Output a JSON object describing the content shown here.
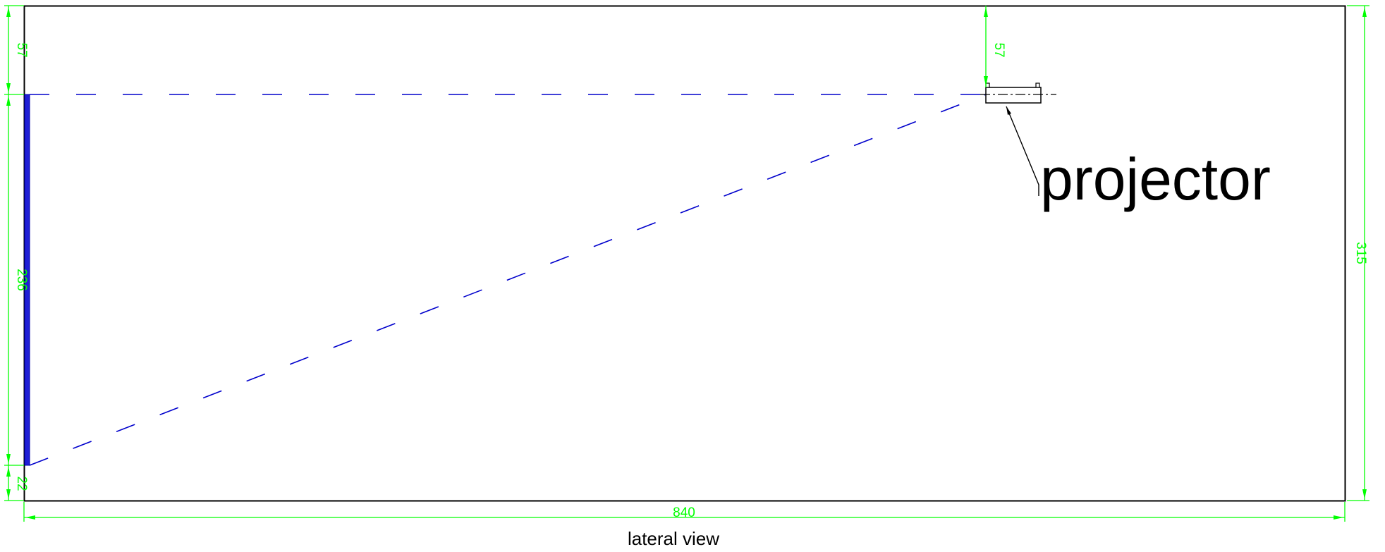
{
  "colors": {
    "outline": "#000000",
    "dimension": "#00ff00",
    "projection": "#0000cc",
    "screen": "#1f1fd6"
  },
  "dimensions": {
    "left_top_gap": "57",
    "screen_height": "236",
    "bottom_gap": "22",
    "projector_gap": "57",
    "room_height": "315",
    "room_length": "840"
  },
  "labels": {
    "projector": "projector",
    "caption": "lateral view"
  },
  "icons": {
    "projector": "projector-icon",
    "screen": "screen-panel"
  }
}
